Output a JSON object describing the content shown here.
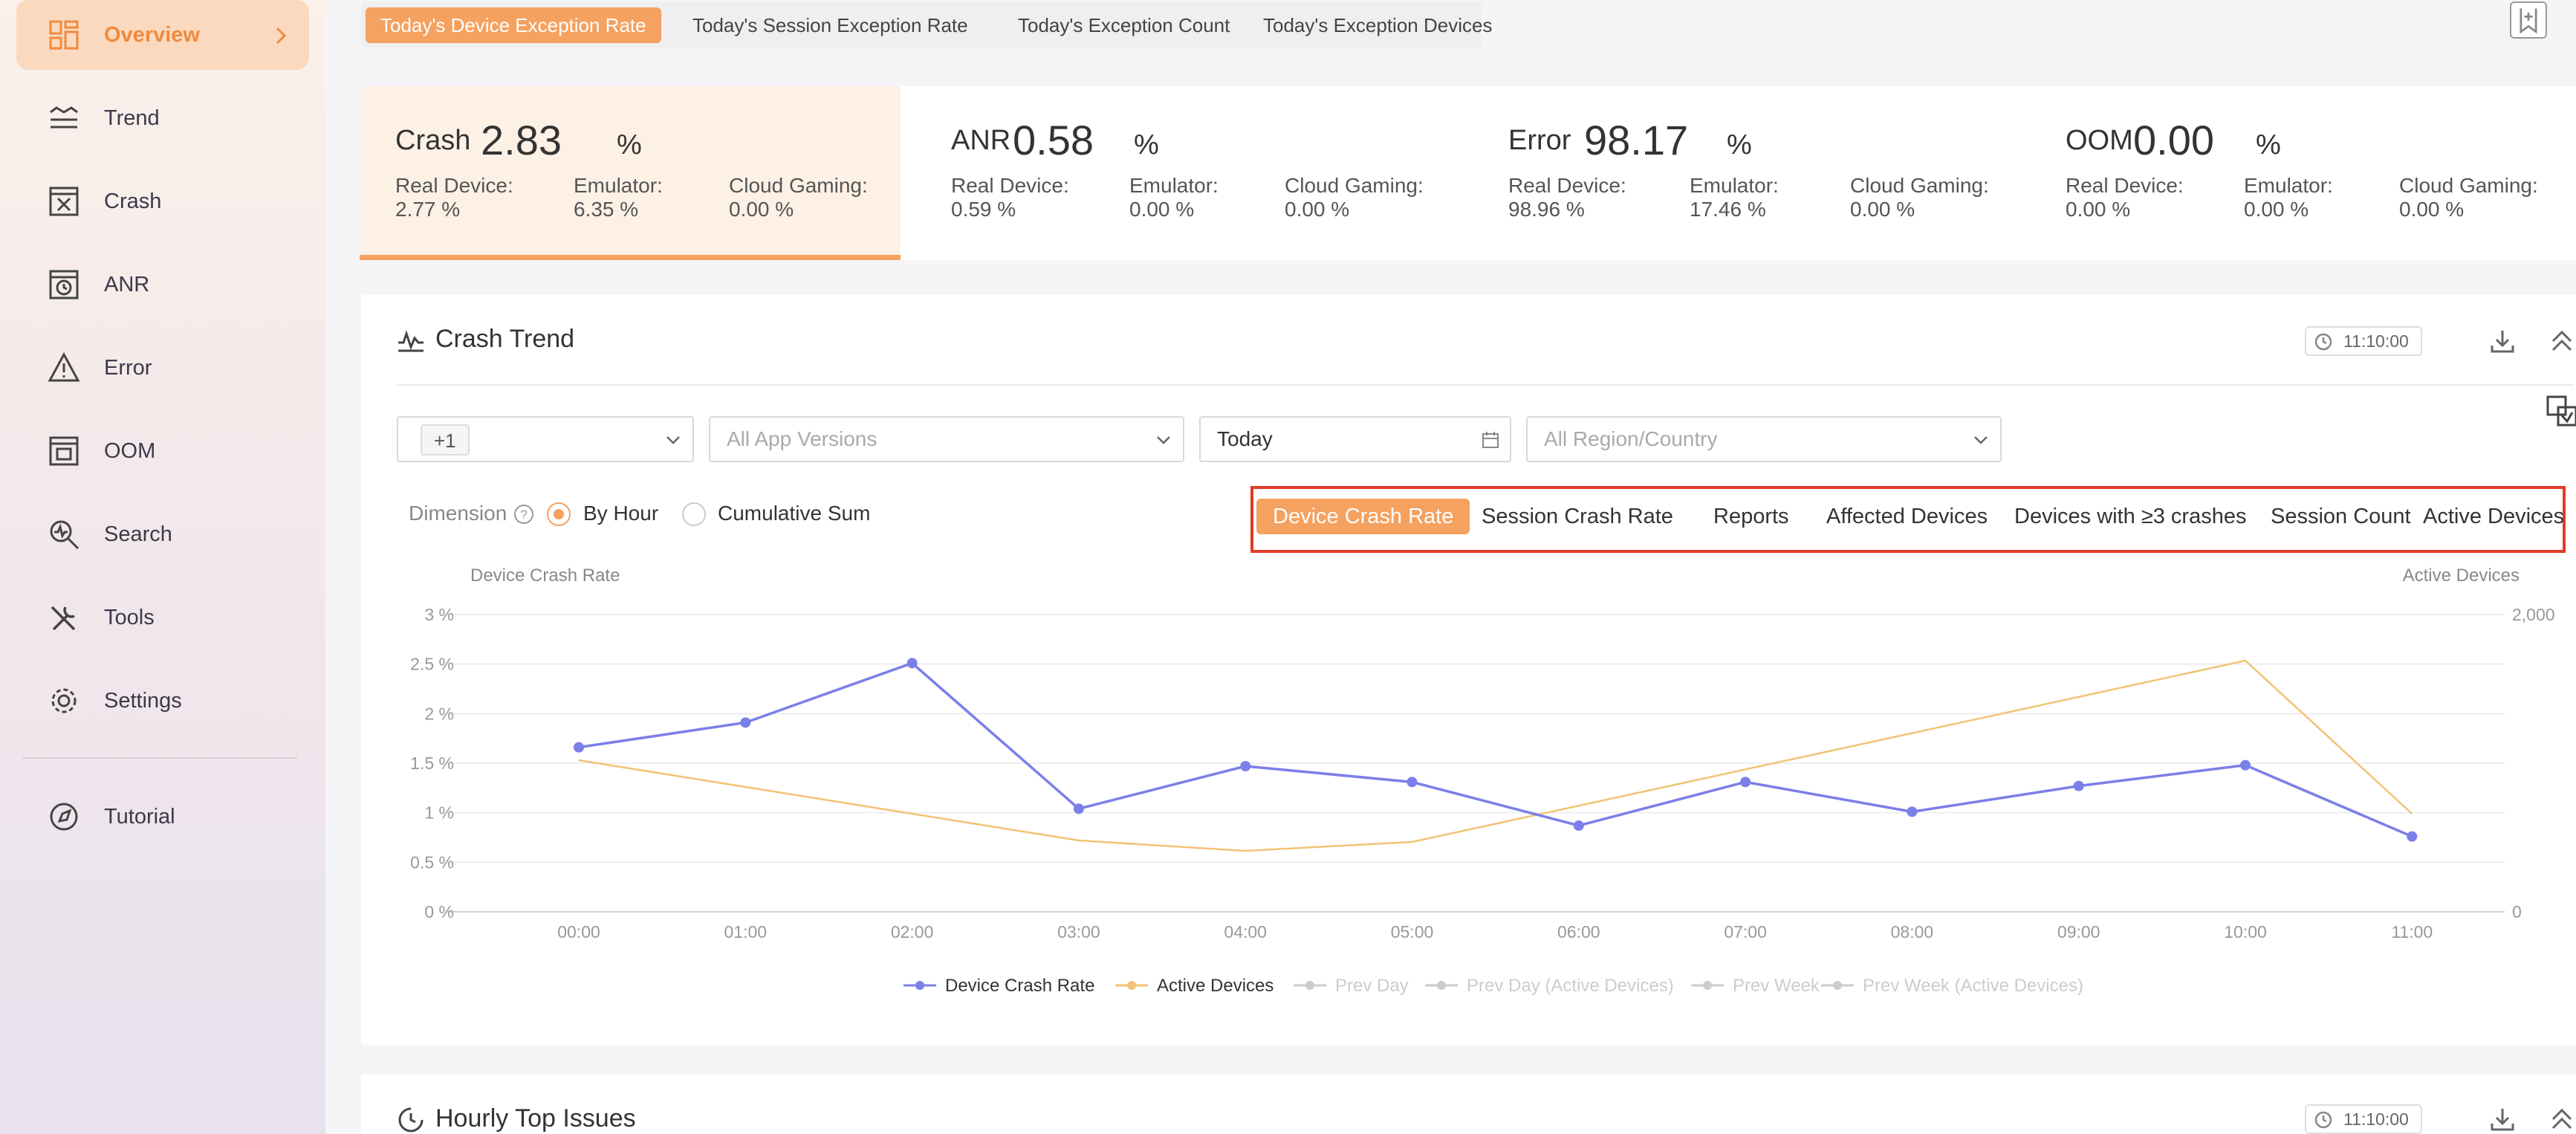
{
  "sidebar": {
    "items": [
      {
        "label": "Overview",
        "icon": "overview-icon"
      },
      {
        "label": "Trend",
        "icon": "trend-icon"
      },
      {
        "label": "Crash",
        "icon": "crash-icon"
      },
      {
        "label": "ANR",
        "icon": "anr-icon"
      },
      {
        "label": "Error",
        "icon": "error-icon"
      },
      {
        "label": "OOM",
        "icon": "oom-icon"
      },
      {
        "label": "Search",
        "icon": "search-icon"
      },
      {
        "label": "Tools",
        "icon": "tools-icon"
      },
      {
        "label": "Settings",
        "icon": "settings-icon"
      },
      {
        "label": "Tutorial",
        "icon": "tutorial-icon"
      }
    ]
  },
  "tabs": [
    "Today's Device Exception Rate",
    "Today's Session Exception Rate",
    "Today's Exception Count",
    "Today's Exception Devices"
  ],
  "stats": [
    {
      "name": "Crash",
      "value": "2.83",
      "unit": "%",
      "real_label": "Real Device:",
      "real": "2.77 %",
      "emu_label": "Emulator:",
      "emu": "6.35 %",
      "cloud_label": "Cloud Gaming:",
      "cloud": "0.00 %"
    },
    {
      "name": "ANR",
      "value": "0.58",
      "unit": "%",
      "real_label": "Real Device:",
      "real": "0.59 %",
      "emu_label": "Emulator:",
      "emu": "0.00 %",
      "cloud_label": "Cloud Gaming:",
      "cloud": "0.00 %"
    },
    {
      "name": "Error",
      "value": "98.17",
      "unit": "%",
      "real_label": "Real Device:",
      "real": "98.96 %",
      "emu_label": "Emulator:",
      "emu": "17.46 %",
      "cloud_label": "Cloud Gaming:",
      "cloud": "0.00 %"
    },
    {
      "name": "OOM",
      "value": "0.00",
      "unit": "%",
      "real_label": "Real Device:",
      "real": "0.00 %",
      "emu_label": "Emulator:",
      "emu": "0.00 %",
      "cloud_label": "Cloud Gaming:",
      "cloud": "0.00 %"
    }
  ],
  "crash_trend": {
    "title": "Crash Trend",
    "time": "11:10:00",
    "filters": {
      "platform_pill": "+1",
      "versions_placeholder": "All App Versions",
      "date_value": "Today",
      "region_placeholder": "All Region/Country"
    },
    "dimension_label": "Dimension",
    "dimension_help": "?",
    "radio_by_hour": "By Hour",
    "radio_cumulative": "Cumulative Sum",
    "metric_tabs": [
      "Device Crash Rate",
      "Session Crash Rate",
      "Reports",
      "Affected Devices",
      "Devices with ≥3 crashes",
      "Session Count",
      "Active Devices"
    ]
  },
  "colors": {
    "accent": "#f5a15f",
    "series1": "#7b7fe8",
    "series2": "#f2c374",
    "highlight": "#e23b28"
  },
  "chart_data": {
    "type": "line",
    "title": "",
    "ylabel": "Device Crash Rate",
    "ylabel_right": "Active Devices",
    "categories": [
      "00:00",
      "01:00",
      "02:00",
      "03:00",
      "04:00",
      "05:00",
      "06:00",
      "07:00",
      "08:00",
      "09:00",
      "10:00",
      "11:00"
    ],
    "ylim": [
      0,
      3
    ],
    "ylim_right": [
      0,
      2000
    ],
    "y_ticks": [
      "0 %",
      "0.5 %",
      "1 %",
      "1.5 %",
      "2 %",
      "2.5 %",
      "3 %"
    ],
    "y_ticks_right": [
      "0",
      "2,000"
    ],
    "series": [
      {
        "name": "Device Crash Rate",
        "axis": "left",
        "values": [
          1.66,
          1.91,
          2.51,
          1.04,
          1.47,
          1.31,
          0.87,
          1.31,
          1.01,
          1.27,
          1.48,
          0.76
        ]
      },
      {
        "name": "Active Devices",
        "axis": "right",
        "values": [
          1020,
          null,
          null,
          480,
          410,
          470,
          null,
          null,
          null,
          null,
          1690,
          660
        ]
      }
    ],
    "legend": [
      {
        "name": "Device Crash Rate",
        "active": true,
        "color": "#7b7fe8"
      },
      {
        "name": "Active Devices",
        "active": true,
        "color": "#f2c374"
      },
      {
        "name": "Prev Day",
        "active": false,
        "color": "#cccccc"
      },
      {
        "name": "Prev Day (Active Devices)",
        "active": false,
        "color": "#cccccc"
      },
      {
        "name": "Prev Week",
        "active": false,
        "color": "#cccccc"
      },
      {
        "name": "Prev Week (Active Devices)",
        "active": false,
        "color": "#cccccc"
      }
    ]
  },
  "hourly_issues": {
    "title": "Hourly Top Issues",
    "time": "11:10:00"
  }
}
